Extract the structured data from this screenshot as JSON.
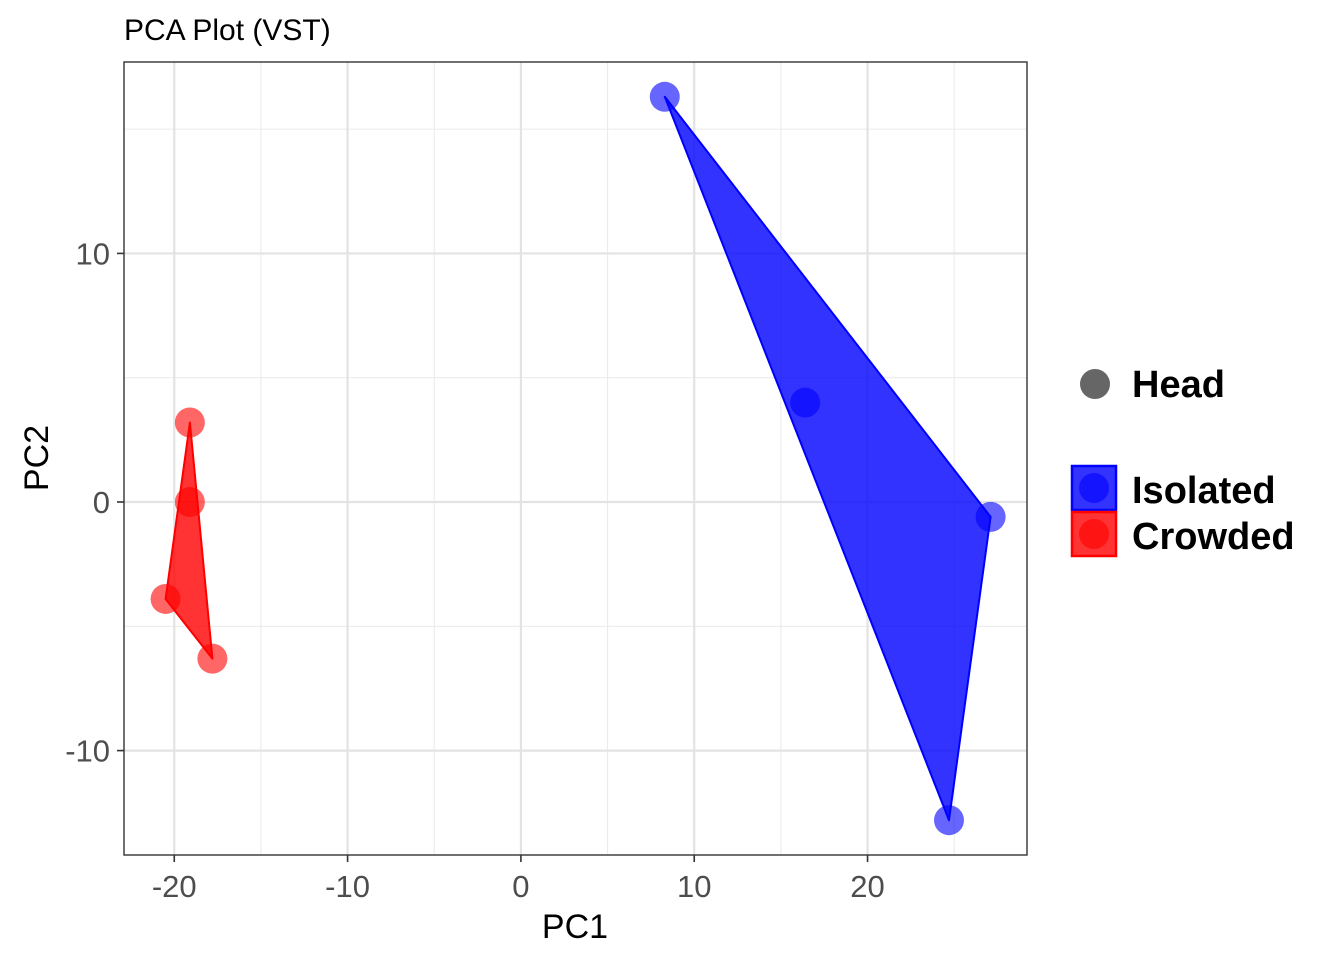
{
  "chart_data": {
    "type": "scatter",
    "title": "PCA Plot (VST)",
    "xlabel": "PC1",
    "ylabel": "PC2",
    "xlim": [
      -22.9,
      29.2
    ],
    "ylim": [
      -14.2,
      17.7
    ],
    "x_ticks": [
      -20,
      -10,
      0,
      10,
      20
    ],
    "y_ticks": [
      -10,
      0,
      10
    ],
    "x_tick_labels": [
      "-20",
      "-10",
      "0",
      "10",
      "20"
    ],
    "y_tick_labels": [
      "-10",
      "0",
      "10"
    ],
    "x_minor_ticks": [
      -15,
      -5,
      5,
      15,
      25
    ],
    "y_minor_ticks": [
      -5,
      5,
      15
    ],
    "grid": true,
    "hull_polygons": true,
    "series": [
      {
        "name": "Isolated",
        "color": "#0000ff",
        "points": [
          {
            "x": 8.3,
            "y": 16.3
          },
          {
            "x": 16.4,
            "y": 4.0
          },
          {
            "x": 27.1,
            "y": -0.6
          },
          {
            "x": 24.7,
            "y": -12.8
          }
        ]
      },
      {
        "name": "Crowded",
        "color": "#ff0000",
        "points": [
          {
            "x": -19.1,
            "y": 3.2
          },
          {
            "x": -19.1,
            "y": 0.0
          },
          {
            "x": -20.5,
            "y": -3.9
          },
          {
            "x": -17.8,
            "y": -6.3
          }
        ]
      }
    ],
    "legend": {
      "placement": "right",
      "shape_title": "Head",
      "shape_color": "#666666",
      "entries": [
        "Isolated",
        "Crowded"
      ]
    }
  }
}
